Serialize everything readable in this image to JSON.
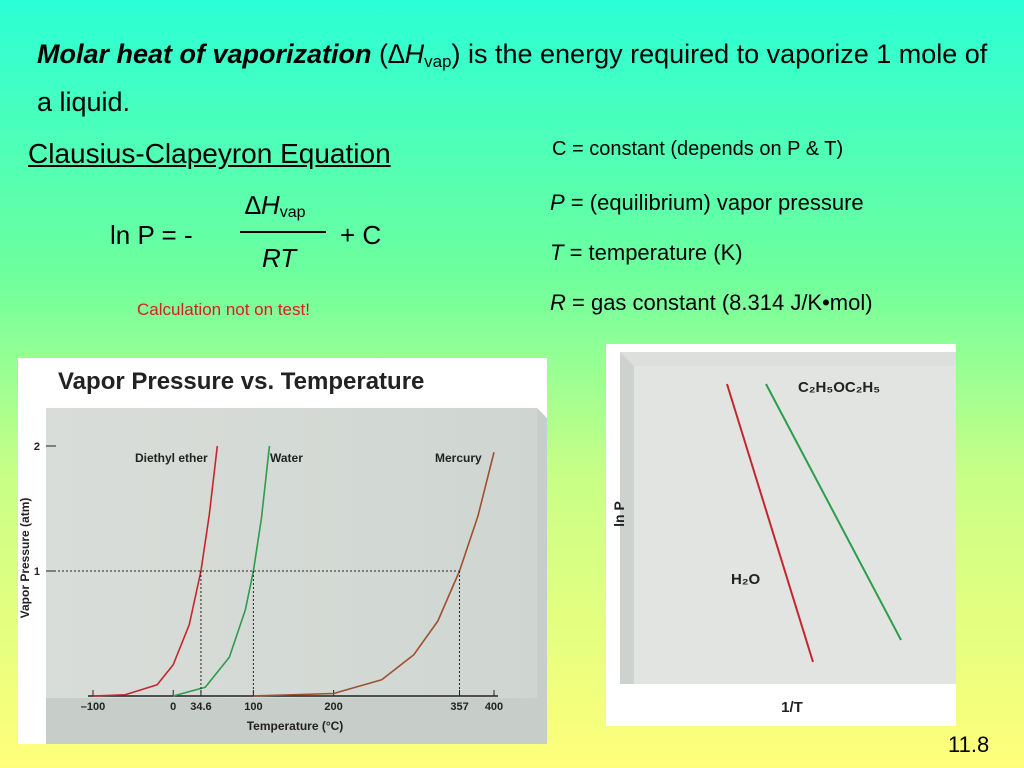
{
  "headline": {
    "bold_term": "Molar heat of vaporization",
    "paren_open": " (",
    "symbol": "∆H",
    "symbol_sub": "vap",
    "rest": ") is the energy required to vaporize 1 mole of a liquid."
  },
  "equation": {
    "title": "Clausius-Clapeyron Equation",
    "lhs": "ln P = -",
    "numerator": "∆H",
    "numerator_sub": "vap",
    "denominator": "RT",
    "rhs": "+ C",
    "note": "Calculation not on test!"
  },
  "constant_note": "C = constant (depends on P & T)",
  "definitions": [
    {
      "symbol": "P",
      "text": " = (equilibrium) vapor pressure"
    },
    {
      "symbol": "T",
      "text": " = temperature (K)"
    },
    {
      "symbol": "R",
      "text": " = gas constant (8.314 J/K•mol)"
    }
  ],
  "slide_number": "11.8",
  "colors": {
    "ether": "#c4262e",
    "water": "#2a9e4a",
    "mercury": "#a05030",
    "red_note": "#d62020"
  },
  "chart_data": [
    {
      "type": "line",
      "title": "Vapor Pressure vs. Temperature",
      "xlabel": "Temperature (°C)",
      "ylabel": "Vapor Pressure (atm)",
      "x_ticks": [
        -100,
        0,
        34.6,
        100,
        200,
        357,
        400
      ],
      "y_ticks": [
        1,
        2
      ],
      "xlim": [
        -100,
        400
      ],
      "ylim": [
        0,
        2
      ],
      "series": [
        {
          "name": "Diethyl ether",
          "boiling_point": 34.6,
          "x": [
            -100,
            -60,
            -20,
            0,
            20,
            34.6,
            45,
            55
          ],
          "y": [
            0.0,
            0.01,
            0.09,
            0.25,
            0.57,
            1.0,
            1.45,
            2.0
          ]
        },
        {
          "name": "Water",
          "boiling_point": 100,
          "x": [
            0,
            40,
            70,
            90,
            100,
            110,
            120
          ],
          "y": [
            0.0,
            0.07,
            0.31,
            0.69,
            1.0,
            1.42,
            2.0
          ]
        },
        {
          "name": "Mercury",
          "boiling_point": 357,
          "x": [
            100,
            200,
            260,
            300,
            330,
            357,
            380,
            400
          ],
          "y": [
            0.0,
            0.02,
            0.13,
            0.33,
            0.6,
            1.0,
            1.44,
            1.95
          ]
        }
      ],
      "reference_line_y": 1,
      "grid": false
    },
    {
      "type": "line",
      "xlabel": "1/T",
      "ylabel": "ln P",
      "series": [
        {
          "name": "C₂H₅OC₂H₅",
          "x": [
            0.0,
            1.0
          ],
          "y": [
            1.0,
            0.0
          ]
        },
        {
          "name": "H₂O",
          "x": [
            0.0,
            1.0
          ],
          "y": [
            1.0,
            0.0
          ]
        }
      ],
      "grid": false
    }
  ]
}
